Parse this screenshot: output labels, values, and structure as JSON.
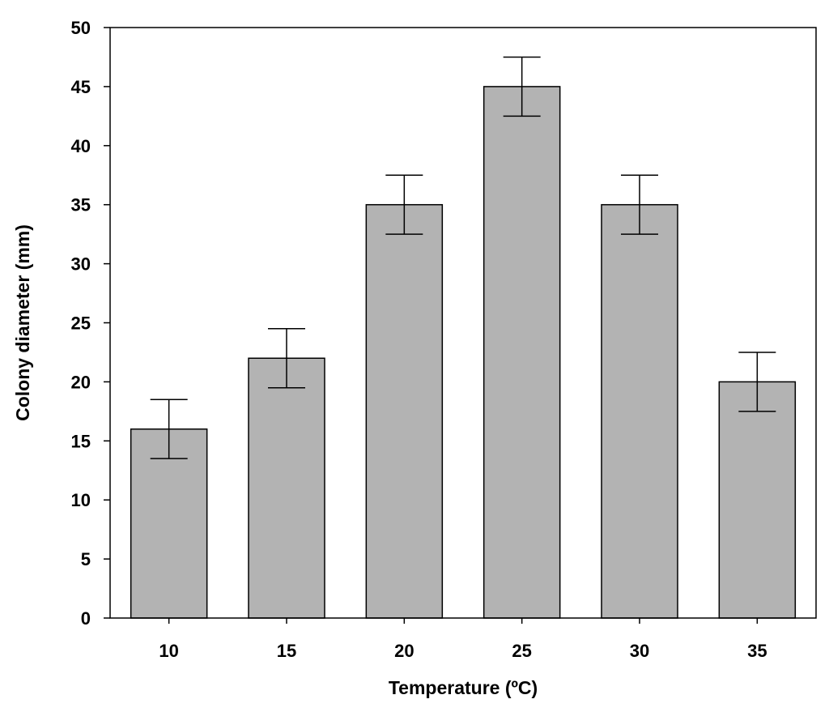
{
  "chart_data": {
    "type": "bar",
    "title": "",
    "xlabel": "Temperature (ºC)",
    "ylabel": "Colony diameter (mm)",
    "categories": [
      "10",
      "15",
      "20",
      "25",
      "30",
      "35"
    ],
    "values": [
      16,
      22,
      35,
      45,
      35,
      20
    ],
    "error": [
      2.5,
      2.5,
      2.5,
      2.5,
      2.5,
      2.5
    ],
    "ylim": [
      0,
      50
    ],
    "yticks": [
      "0",
      "5",
      "10",
      "15",
      "20",
      "25",
      "30",
      "35",
      "40",
      "45",
      "50"
    ],
    "grid": false,
    "legend": "none",
    "colors": {
      "bar_fill": "#b3b3b3",
      "bar_stroke": "#000000",
      "axis": "#000000",
      "error_bar": "#000000"
    }
  }
}
